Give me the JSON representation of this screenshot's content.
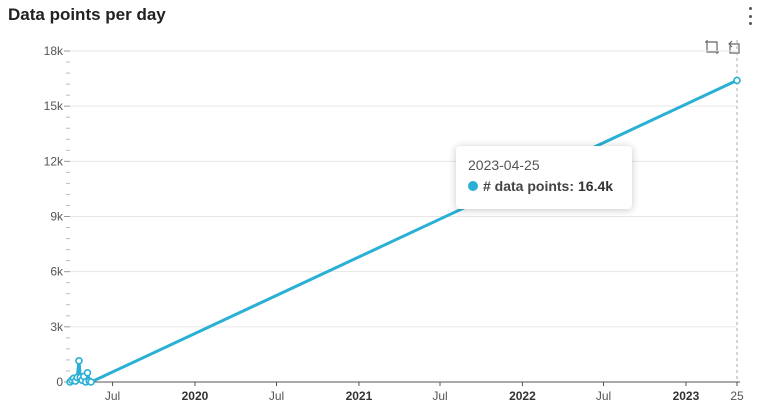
{
  "panel": {
    "title": "Data points per day"
  },
  "colors": {
    "series": "#2ab0d4",
    "grid": "#e6e6e6",
    "axis": "#555555",
    "guide": "#aaaaaa"
  },
  "tooltip": {
    "date": "2023-04-25",
    "label": "# data points:",
    "value": "16.4k"
  },
  "chart_data": {
    "type": "line",
    "title": "Data points per day",
    "xlabel": "",
    "ylabel": "",
    "ylim": [
      0,
      18000
    ],
    "yticks": [
      {
        "value": 0,
        "label": "0"
      },
      {
        "value": 3000,
        "label": "3k"
      },
      {
        "value": 6000,
        "label": "6k"
      },
      {
        "value": 9000,
        "label": "9k"
      },
      {
        "value": 12000,
        "label": "12k"
      },
      {
        "value": 15000,
        "label": "15k"
      },
      {
        "value": 18000,
        "label": "18k"
      }
    ],
    "xlim": [
      "2019-03-28",
      "2023-04-25"
    ],
    "xticks": [
      {
        "date": "2019-07-01",
        "label": "Jul",
        "bold": false
      },
      {
        "date": "2020-01-01",
        "label": "2020",
        "bold": true
      },
      {
        "date": "2020-07-01",
        "label": "Jul",
        "bold": false
      },
      {
        "date": "2021-01-01",
        "label": "2021",
        "bold": true
      },
      {
        "date": "2021-07-01",
        "label": "Jul",
        "bold": false
      },
      {
        "date": "2022-01-01",
        "label": "2022",
        "bold": true
      },
      {
        "date": "2022-07-01",
        "label": "Jul",
        "bold": false
      },
      {
        "date": "2023-01-01",
        "label": "2023",
        "bold": true
      },
      {
        "date": "2023-04-25",
        "label": "25",
        "bold": false
      }
    ],
    "grid": true,
    "series": [
      {
        "name": "# data points",
        "points": [
          {
            "x": "2019-03-28",
            "y": 0
          },
          {
            "x": "2019-04-01",
            "y": 100
          },
          {
            "x": "2019-04-05",
            "y": 200
          },
          {
            "x": "2019-04-09",
            "y": 50
          },
          {
            "x": "2019-04-13",
            "y": 250
          },
          {
            "x": "2019-04-17",
            "y": 1150
          },
          {
            "x": "2019-04-20",
            "y": 250
          },
          {
            "x": "2019-04-24",
            "y": 100
          },
          {
            "x": "2019-04-28",
            "y": 300
          },
          {
            "x": "2019-05-02",
            "y": 0
          },
          {
            "x": "2019-05-06",
            "y": 500
          },
          {
            "x": "2019-05-10",
            "y": 50
          },
          {
            "x": "2019-05-14",
            "y": 0
          },
          {
            "x": "2023-04-25",
            "y": 16400
          }
        ]
      }
    ]
  }
}
